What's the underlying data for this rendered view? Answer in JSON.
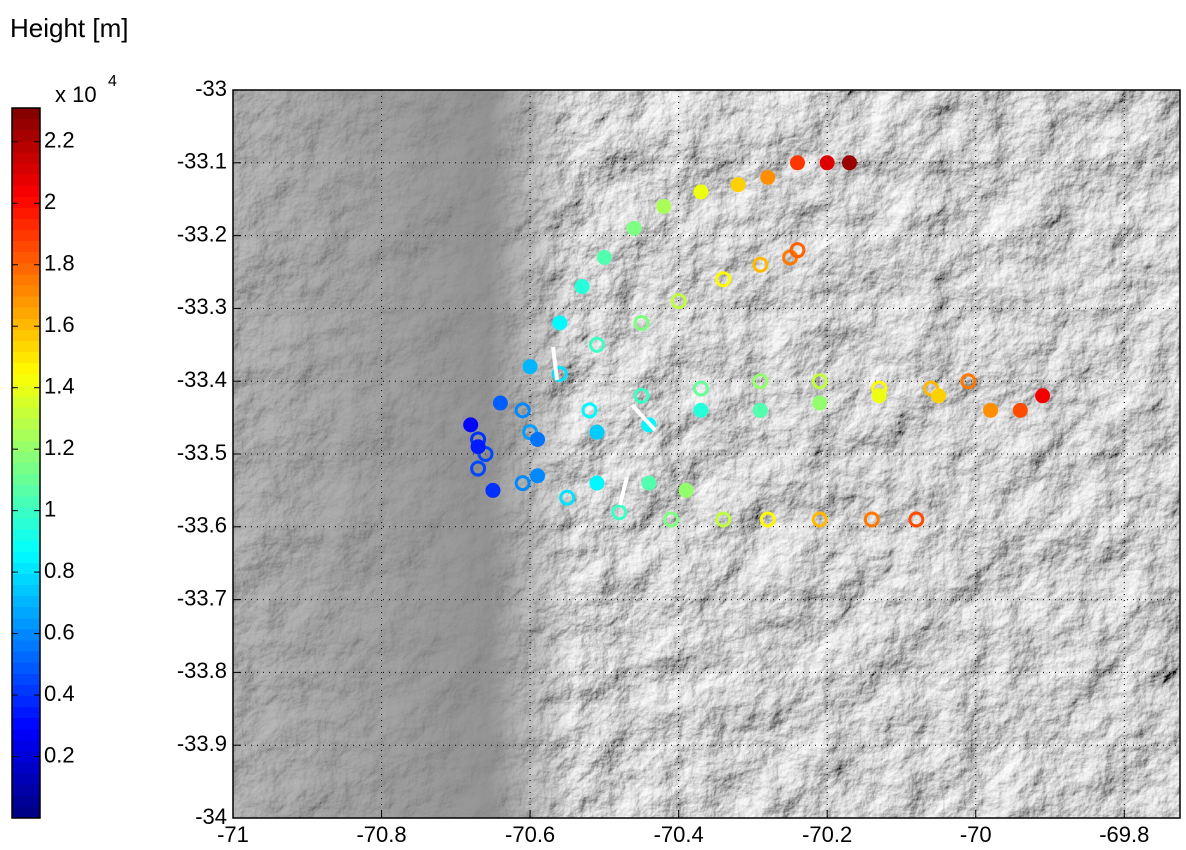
{
  "chart_data": {
    "type": "scatter",
    "title": "Height [m]",
    "colorbar_label": "x 10",
    "colorbar_exponent": "4",
    "colormap": "jet",
    "clim": [
      0,
      2.31
    ],
    "cticks": [
      0.2,
      0.4,
      0.6,
      0.8,
      1,
      1.2,
      1.4,
      1.6,
      1.8,
      2,
      2.2
    ],
    "xlim": [
      -71,
      -69.725
    ],
    "ylim": [
      -34,
      -33
    ],
    "xticks": [
      -71,
      -70.8,
      -70.6,
      -70.4,
      -70.2,
      -70,
      -69.8
    ],
    "yticks": [
      -34,
      -33.9,
      -33.8,
      -33.7,
      -33.6,
      -33.5,
      -33.4,
      -33.3,
      -33.2,
      -33.1,
      -33
    ],
    "grid": true,
    "series": [
      {
        "marker": "filled",
        "x": [
          -70.68,
          -70.64,
          -70.6,
          -70.56,
          -70.53,
          -70.5,
          -70.46,
          -70.42,
          -70.37,
          -70.32,
          -70.28,
          -70.24,
          -70.2,
          -70.17
        ],
        "y": [
          -33.46,
          -33.43,
          -33.38,
          -33.32,
          -33.27,
          -33.23,
          -33.19,
          -33.16,
          -33.14,
          -33.13,
          -33.12,
          -33.1,
          -33.1,
          -33.1
        ],
        "values": [
          0.3,
          0.5,
          0.7,
          0.85,
          0.95,
          1.05,
          1.15,
          1.25,
          1.4,
          1.55,
          1.7,
          1.9,
          2.1,
          2.25
        ]
      },
      {
        "marker": "open",
        "x": [
          -70.67,
          -70.61,
          -70.56,
          -70.51,
          -70.45,
          -70.4,
          -70.34,
          -70.29,
          -70.25,
          -70.24
        ],
        "y": [
          -33.48,
          -33.44,
          -33.39,
          -33.35,
          -33.32,
          -33.29,
          -33.26,
          -33.24,
          -33.23,
          -33.22
        ],
        "values": [
          0.4,
          0.6,
          0.8,
          1.0,
          1.15,
          1.3,
          1.45,
          1.6,
          1.75,
          1.8
        ]
      },
      {
        "marker": "open",
        "x": [
          -70.66,
          -70.6,
          -70.52,
          -70.45,
          -70.37,
          -70.29,
          -70.21,
          -70.13,
          -70.06,
          -70.01
        ],
        "y": [
          -33.5,
          -33.47,
          -33.44,
          -33.42,
          -33.41,
          -33.4,
          -33.4,
          -33.41,
          -33.41,
          -33.4
        ],
        "values": [
          0.45,
          0.65,
          0.85,
          1.0,
          1.1,
          1.2,
          1.3,
          1.45,
          1.6,
          1.75
        ]
      },
      {
        "marker": "filled",
        "x": [
          -70.67,
          -70.59,
          -70.51,
          -70.44,
          -70.37,
          -70.29,
          -70.21,
          -70.13,
          -70.05,
          -69.98,
          -69.94,
          -69.91
        ],
        "y": [
          -33.49,
          -33.48,
          -33.47,
          -33.46,
          -33.44,
          -33.44,
          -33.43,
          -33.42,
          -33.42,
          -33.44,
          -33.44,
          -33.42
        ],
        "values": [
          0.35,
          0.55,
          0.75,
          0.85,
          0.95,
          1.05,
          1.2,
          1.4,
          1.55,
          1.7,
          1.85,
          2.05
        ]
      },
      {
        "marker": "filled",
        "x": [
          -70.65,
          -70.59,
          -70.51,
          -70.44,
          -70.39
        ],
        "y": [
          -33.55,
          -33.53,
          -33.54,
          -33.54,
          -33.55
        ],
        "values": [
          0.4,
          0.6,
          0.85,
          1.05,
          1.2
        ]
      },
      {
        "marker": "open",
        "x": [
          -70.67,
          -70.61,
          -70.55,
          -70.48,
          -70.41,
          -70.34,
          -70.28,
          -70.21,
          -70.14,
          -70.08
        ],
        "y": [
          -33.52,
          -33.54,
          -33.56,
          -33.58,
          -33.59,
          -33.59,
          -33.59,
          -33.59,
          -33.59,
          -33.59
        ],
        "values": [
          0.45,
          0.6,
          0.8,
          1.0,
          1.15,
          1.3,
          1.45,
          1.6,
          1.75,
          1.85
        ]
      }
    ]
  }
}
